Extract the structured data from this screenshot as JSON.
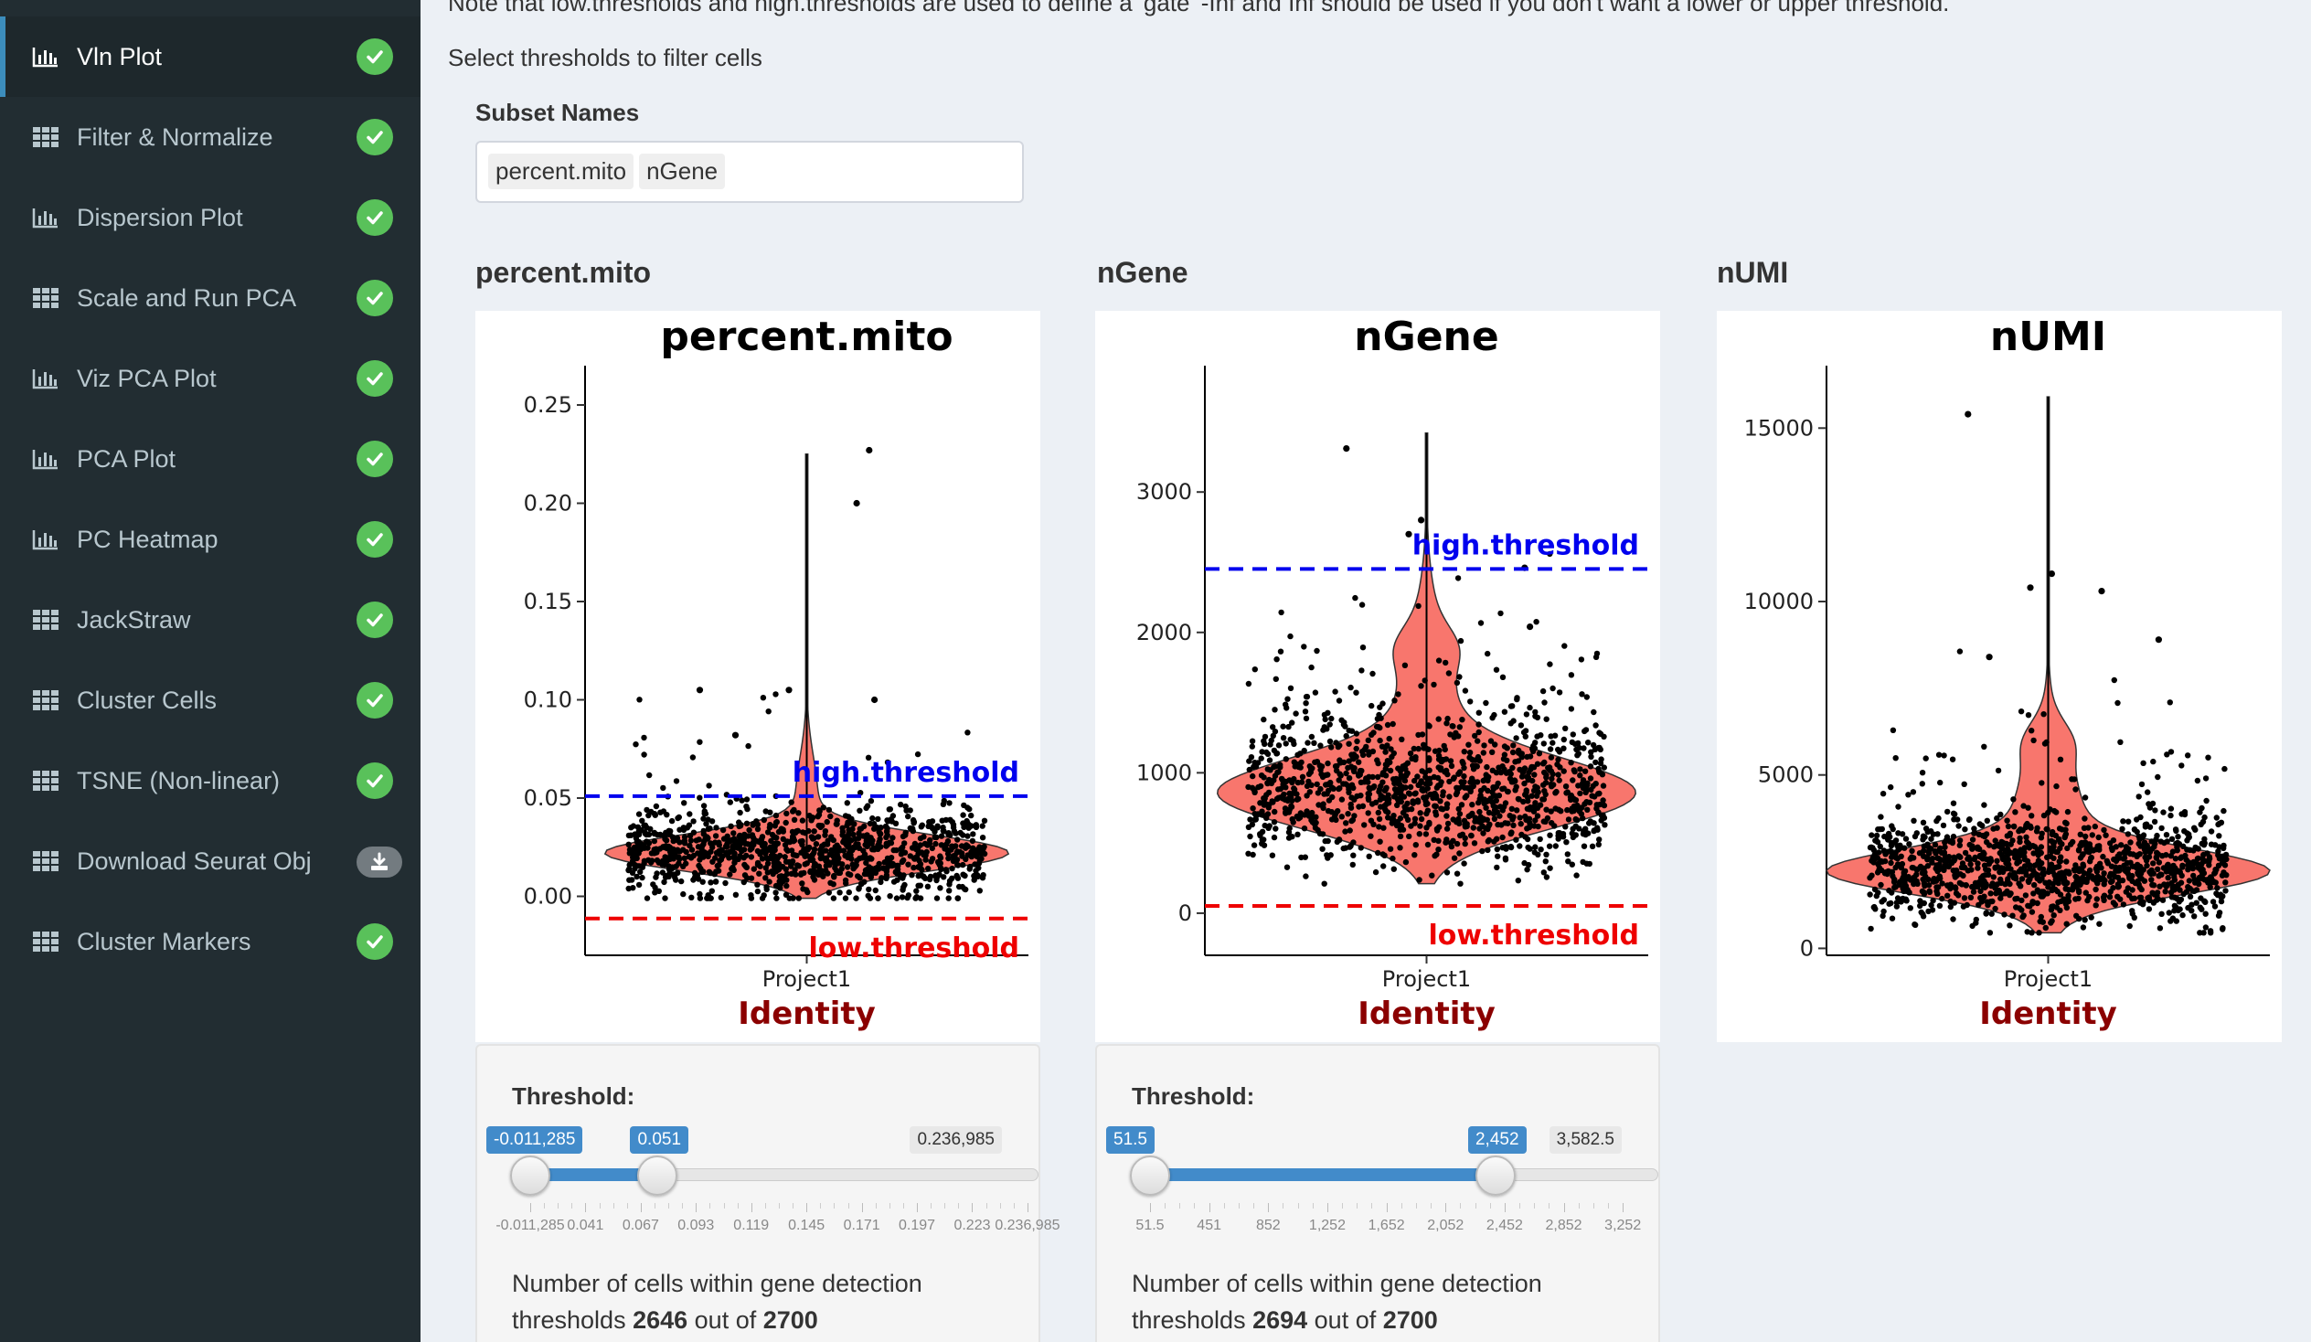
{
  "sidebar": {
    "items": [
      {
        "label": "Vln Plot",
        "icon": "bar-chart-icon",
        "status": "check",
        "active": true
      },
      {
        "label": "Filter & Normalize",
        "icon": "table-icon",
        "status": "check"
      },
      {
        "label": "Dispersion Plot",
        "icon": "bar-chart-icon",
        "status": "check"
      },
      {
        "label": "Scale and Run PCA",
        "icon": "table-icon",
        "status": "check"
      },
      {
        "label": "Viz PCA Plot",
        "icon": "bar-chart-icon",
        "status": "check"
      },
      {
        "label": "PCA Plot",
        "icon": "bar-chart-icon",
        "status": "check"
      },
      {
        "label": "PC Heatmap",
        "icon": "bar-chart-icon",
        "status": "check"
      },
      {
        "label": "JackStraw",
        "icon": "table-icon",
        "status": "check"
      },
      {
        "label": "Cluster Cells",
        "icon": "table-icon",
        "status": "check"
      },
      {
        "label": "TSNE (Non-linear)",
        "icon": "table-icon",
        "status": "check"
      },
      {
        "label": "Download Seurat Obj",
        "icon": "table-icon",
        "status": "download"
      },
      {
        "label": "Cluster Markers",
        "icon": "table-icon",
        "status": "check"
      }
    ]
  },
  "main": {
    "note": "Note that low.thresholds and high.thresholds are used to define a 'gate' -Inf and Inf should be used if you don't want a lower or upper threshold.",
    "select_label": "Select thresholds to filter cells",
    "subset_label": "Subset Names",
    "subset_chips": [
      "percent.mito",
      "nGene"
    ]
  },
  "colors": {
    "violin": "#f8766d",
    "high": "#0000ee",
    "low": "#ee0000",
    "identity": "#8b0000",
    "accent": "#428bca"
  },
  "chart_data": [
    {
      "type": "violin",
      "header": "percent.mito",
      "title": "percent.mito",
      "xlabel": "Identity",
      "category": "Project1",
      "ylim": [
        -0.03,
        0.27
      ],
      "yticks": [
        0.0,
        0.05,
        0.1,
        0.15,
        0.2,
        0.25
      ],
      "ytick_labels": [
        "0.00",
        "0.05",
        "0.10",
        "0.15",
        "0.20",
        "0.25"
      ],
      "high_threshold": 0.051,
      "low_threshold": -0.011285,
      "high_label": "high.threshold",
      "low_label": "low.threshold"
    },
    {
      "type": "violin",
      "header": "nGene",
      "title": "nGene",
      "xlabel": "Identity",
      "category": "Project1",
      "ylim": [
        -300,
        3900
      ],
      "yticks": [
        0,
        1000,
        2000,
        3000
      ],
      "ytick_labels": [
        "0",
        "1000",
        "2000",
        "3000"
      ],
      "high_threshold": 2452,
      "low_threshold": 51.5,
      "high_label": "high.threshold",
      "low_label": "low.threshold"
    },
    {
      "type": "violin",
      "header": "nUMI",
      "title": "nUMI",
      "xlabel": "Identity",
      "category": "Project1",
      "ylim": [
        -200,
        16800
      ],
      "yticks": [
        0,
        5000,
        10000,
        15000
      ],
      "ytick_labels": [
        "0",
        "5000",
        "10000",
        "15000"
      ]
    }
  ],
  "sliders": [
    {
      "label": "Threshold:",
      "min": -0.011285,
      "max": 0.236985,
      "low": -0.011285,
      "high": 0.051,
      "low_label": "-0.011,285",
      "high_label": "0.051",
      "max_label": "0.236,985",
      "ticks": [
        "-0.011,285",
        "0.041",
        "0.067",
        "0.093",
        "0.119",
        "0.145",
        "0.171",
        "0.197",
        "0.223",
        "0.236,985"
      ],
      "text_prefix": "Number of cells within gene detection thresholds",
      "count": "2646",
      "out_of": "out of",
      "total": "2700"
    },
    {
      "label": "Threshold:",
      "min": 51.5,
      "max": 3582.5,
      "low": 51.5,
      "high": 2452,
      "low_label": "51.5",
      "high_label": "2,452",
      "max_label": "3,582.5",
      "ticks": [
        "51.5",
        "451",
        "852",
        "1,252",
        "1,652",
        "2,052",
        "2,452",
        "2,852",
        "3,252"
      ],
      "text_prefix": "Number of cells within gene detection thresholds",
      "count": "2694",
      "out_of": "out of",
      "total": "2700"
    }
  ]
}
